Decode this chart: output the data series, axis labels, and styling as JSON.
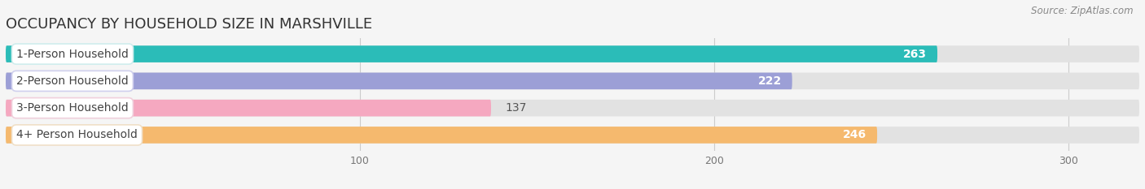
{
  "title": "OCCUPANCY BY HOUSEHOLD SIZE IN MARSHVILLE",
  "source": "Source: ZipAtlas.com",
  "categories": [
    "1-Person Household",
    "2-Person Household",
    "3-Person Household",
    "4+ Person Household"
  ],
  "values": [
    263,
    222,
    137,
    246
  ],
  "bar_colors": [
    "#2bbcb8",
    "#9c9fd6",
    "#f5a8c0",
    "#f5b96e"
  ],
  "label_bg_colors": [
    "#ffffff",
    "#ffffff",
    "#ffffff",
    "#ffffff"
  ],
  "label_border_colors": [
    "#d0eded",
    "#d0d0ed",
    "#f0d0dc",
    "#f0e0c8"
  ],
  "value_colors": [
    "white",
    "white",
    "#666666",
    "white"
  ],
  "xlim": [
    0,
    320
  ],
  "xticks": [
    100,
    200,
    300
  ],
  "background_color": "#f5f5f5",
  "bar_bg_color": "#e2e2e2",
  "title_fontsize": 13,
  "source_fontsize": 8.5,
  "label_fontsize": 10,
  "value_fontsize": 10
}
